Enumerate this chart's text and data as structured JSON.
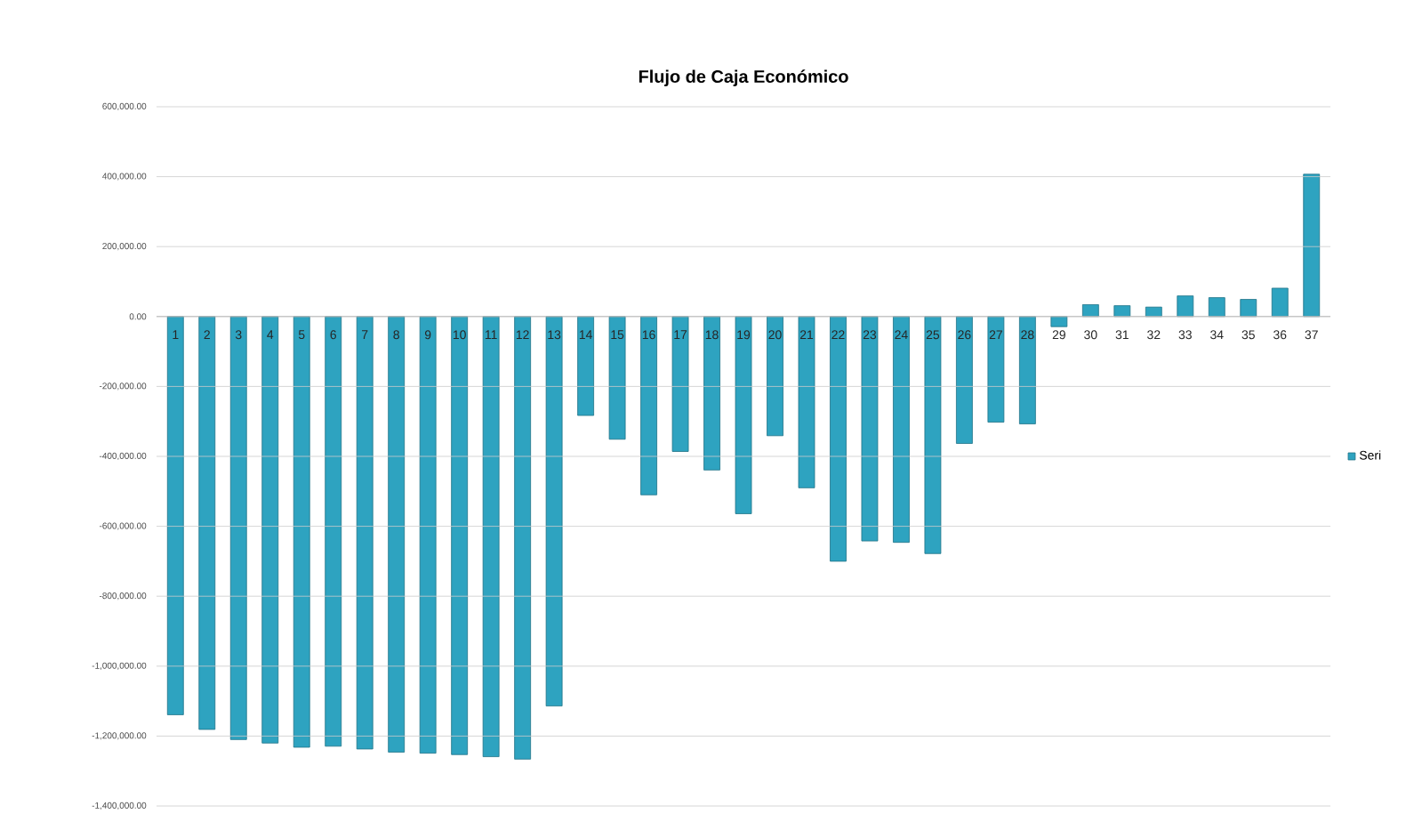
{
  "chart_data": {
    "type": "bar",
    "title": "Flujo de Caja Económico",
    "categories": [
      "1",
      "2",
      "3",
      "4",
      "5",
      "6",
      "7",
      "8",
      "9",
      "10",
      "11",
      "12",
      "13",
      "14",
      "15",
      "16",
      "17",
      "18",
      "19",
      "20",
      "21",
      "22",
      "23",
      "24",
      "25",
      "26",
      "27",
      "28",
      "29",
      "30",
      "31",
      "32",
      "33",
      "34",
      "35",
      "36",
      "37"
    ],
    "series": [
      {
        "name": "Seri",
        "color": "#2ea3c0",
        "values": [
          -1139000,
          -1181000,
          -1210000,
          -1220000,
          -1232000,
          -1229000,
          -1237000,
          -1246000,
          -1249000,
          -1253000,
          -1259000,
          -1266000,
          -1114000,
          -283000,
          -351000,
          -510000,
          -386000,
          -439000,
          -564000,
          -341000,
          -490000,
          -700000,
          -642000,
          -646000,
          -678000,
          -363000,
          -302000,
          -307000,
          -29000,
          34000,
          31000,
          27000,
          59000,
          54000,
          49000,
          81000,
          407000
        ]
      }
    ],
    "ylim": [
      -1400000,
      600000
    ],
    "yticks": [
      {
        "value": -1400000,
        "label": "-1,400,000.00"
      },
      {
        "value": -1200000,
        "label": "-1,200,000.00"
      },
      {
        "value": -1000000,
        "label": "-1,000,000.00"
      },
      {
        "value": -800000,
        "label": "-800,000.00"
      },
      {
        "value": -600000,
        "label": "-600,000.00"
      },
      {
        "value": -400000,
        "label": "-400,000.00"
      },
      {
        "value": -200000,
        "label": "-200,000.00"
      },
      {
        "value": 0,
        "label": "0.00"
      },
      {
        "value": 200000,
        "label": "200,000.00"
      },
      {
        "value": 400000,
        "label": "400,000.00"
      },
      {
        "value": 600000,
        "label": "600,000.00"
      }
    ],
    "grid": "y",
    "legend": "right"
  }
}
